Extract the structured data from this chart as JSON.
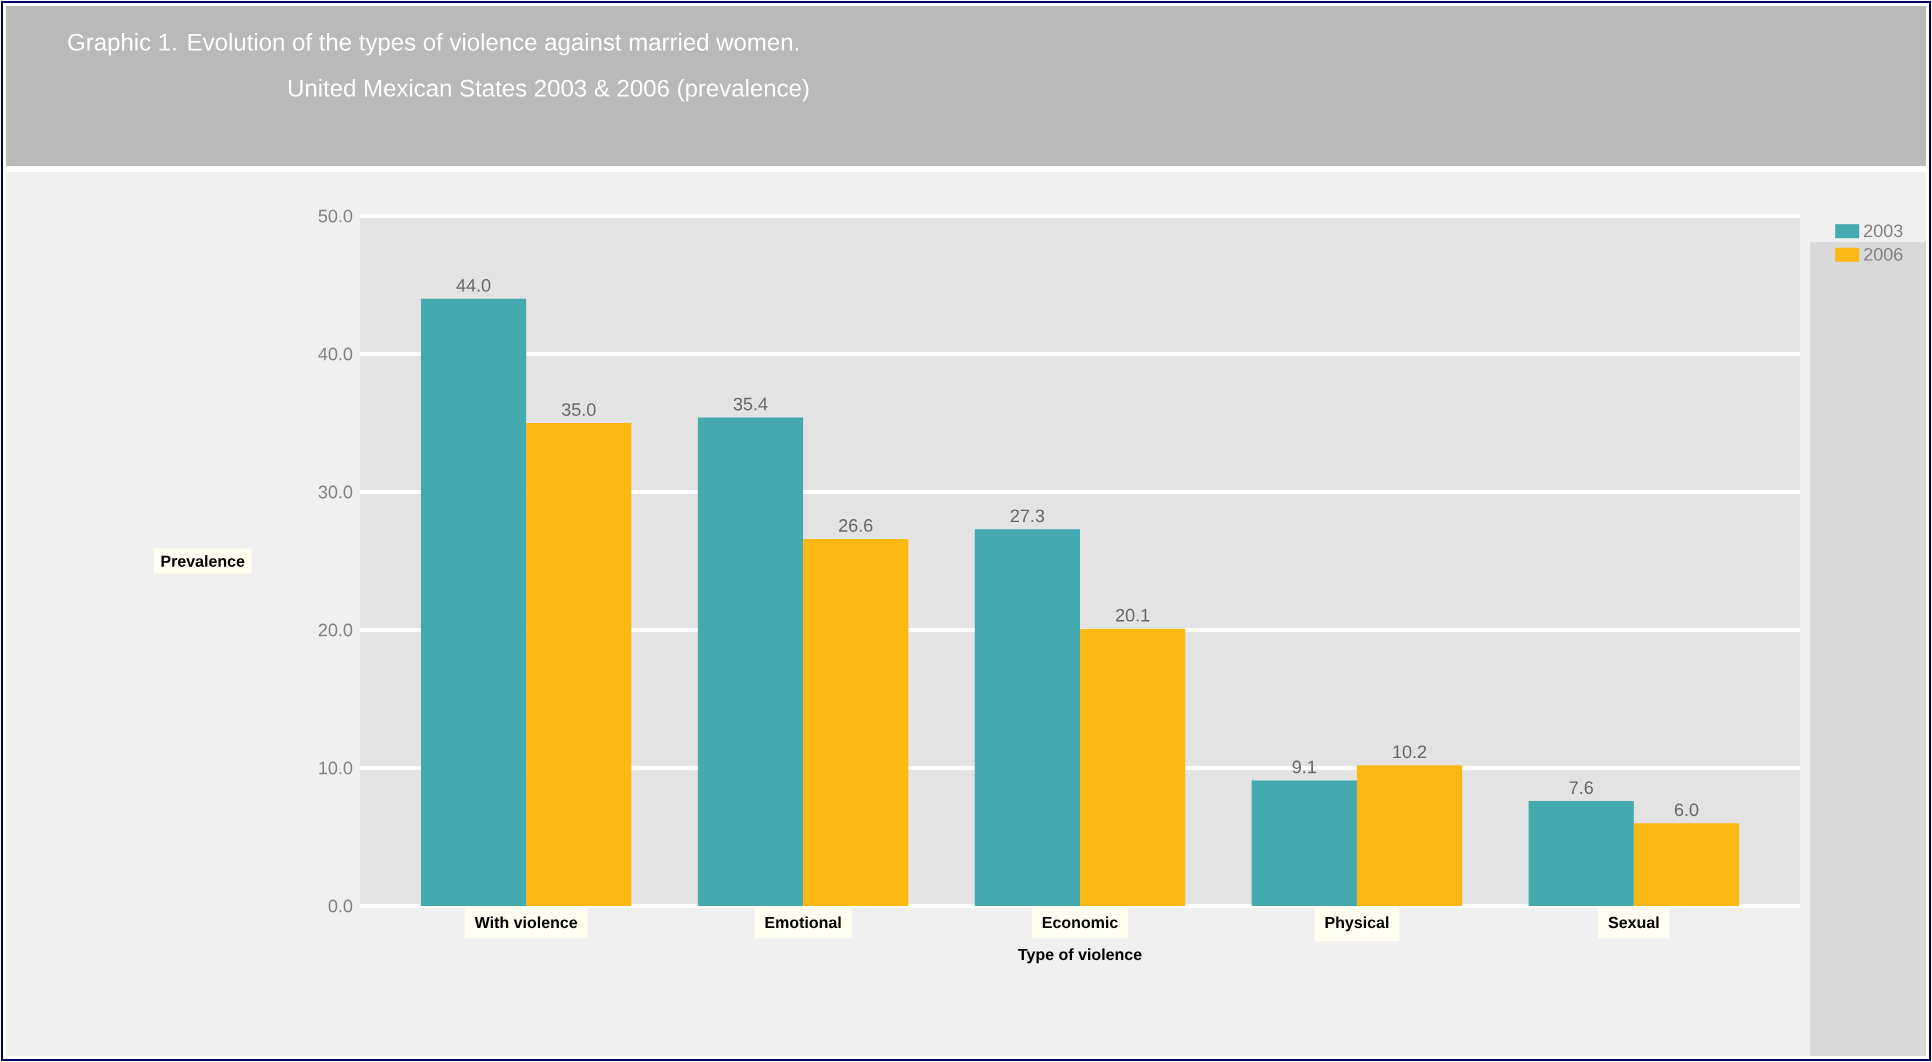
{
  "chart_data": {
    "type": "bar",
    "title": "Graphic 1.    Evolution of the types of violence against married women.",
    "subtitle": "United Mexican States 2003 & 2006 (prevalence)",
    "xlabel": "Type of violence",
    "ylabel": "Prevalence",
    "categories": [
      "With violence",
      "Emotional",
      "Economic",
      "Physical",
      "Sexual"
    ],
    "series": [
      {
        "name": "2003",
        "color": "#45a9b0",
        "values": [
          44.0,
          35.4,
          27.3,
          9.1,
          7.6
        ],
        "value_labels": [
          "44.0",
          "35.4",
          "27.3",
          "9.1",
          "7.6"
        ]
      },
      {
        "name": "2006",
        "color": "#fbb813",
        "values": [
          35.0,
          26.6,
          20.1,
          10.2,
          6.0
        ],
        "value_labels": [
          "35.0",
          "26.6",
          "20.1",
          "10.2",
          "6.0"
        ]
      }
    ],
    "ylim": [
      0,
      50
    ],
    "yticks": [
      {
        "value": 0,
        "label": "0.0"
      },
      {
        "value": 10,
        "label": "10.0"
      },
      {
        "value": 20,
        "label": "20.0"
      },
      {
        "value": 30,
        "label": "30.0"
      },
      {
        "value": 40,
        "label": "40.0"
      },
      {
        "value": 50,
        "label": "50.0"
      }
    ],
    "grid": "y",
    "legend": "top right"
  }
}
